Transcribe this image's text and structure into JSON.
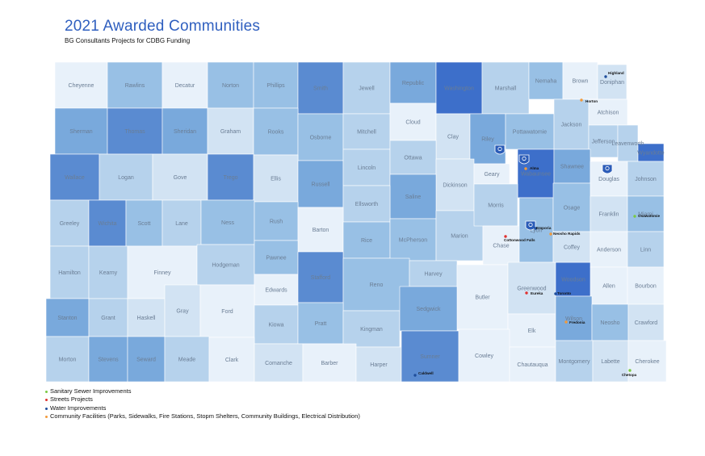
{
  "header": {
    "title": "2021 Awarded Communities",
    "subtitle": "BG Consultants Projects for CDBG Funding"
  },
  "colors": {
    "shade": [
      "#e8f1fa",
      "#d2e3f3",
      "#b6d2ec",
      "#98c0e5",
      "#79a9dc",
      "#5a8bd1",
      "#3d6fca"
    ],
    "sewer": "#7ac943",
    "streets": "#e0312f",
    "water": "#1f4e9c",
    "facilities": "#f29a3a",
    "outline": "#ffffff",
    "county_text": "#6a7d94"
  },
  "counties": [
    {
      "name": "Cheyenne",
      "shade": 0
    },
    {
      "name": "Rawlins",
      "shade": 3
    },
    {
      "name": "Decatur",
      "shade": 0
    },
    {
      "name": "Norton",
      "shade": 3
    },
    {
      "name": "Phillips",
      "shade": 3
    },
    {
      "name": "Smith",
      "shade": 5
    },
    {
      "name": "Jewell",
      "shade": 2
    },
    {
      "name": "Republic",
      "shade": 4
    },
    {
      "name": "Washington",
      "shade": 6
    },
    {
      "name": "Marshall",
      "shade": 2
    },
    {
      "name": "Nemaha",
      "shade": 3
    },
    {
      "name": "Brown",
      "shade": 0
    },
    {
      "name": "Doniphan",
      "shade": 1
    },
    {
      "name": "Sherman",
      "shade": 4
    },
    {
      "name": "Thomas",
      "shade": 5
    },
    {
      "name": "Sheridan",
      "shade": 4
    },
    {
      "name": "Graham",
      "shade": 1
    },
    {
      "name": "Rooks",
      "shade": 3
    },
    {
      "name": "Osborne",
      "shade": 3
    },
    {
      "name": "Mitchell",
      "shade": 2
    },
    {
      "name": "Cloud",
      "shade": 0
    },
    {
      "name": "Clay",
      "shade": 1
    },
    {
      "name": "Riley",
      "shade": 4
    },
    {
      "name": "Pottawatomie",
      "shade": 3
    },
    {
      "name": "Jackson",
      "shade": 2
    },
    {
      "name": "Atchison",
      "shade": 0
    },
    {
      "name": "Jefferson",
      "shade": 2
    },
    {
      "name": "Leavenworth",
      "shade": 2
    },
    {
      "name": "Wyandotte",
      "shade": 6
    },
    {
      "name": "Wallace",
      "shade": 5
    },
    {
      "name": "Logan",
      "shade": 2
    },
    {
      "name": "Gove",
      "shade": 1
    },
    {
      "name": "Trego",
      "shade": 5
    },
    {
      "name": "Ellis",
      "shade": 1
    },
    {
      "name": "Russell",
      "shade": 4
    },
    {
      "name": "Lincoln",
      "shade": 2
    },
    {
      "name": "Ottawa",
      "shade": 2
    },
    {
      "name": "Dickinson",
      "shade": 1
    },
    {
      "name": "Geary",
      "shade": 0
    },
    {
      "name": "Wabaunsee",
      "shade": 6
    },
    {
      "name": "Shawnee",
      "shade": 4
    },
    {
      "name": "Douglas",
      "shade": 0
    },
    {
      "name": "Johnson",
      "shade": 2
    },
    {
      "name": "Saline",
      "shade": 4
    },
    {
      "name": "Ellsworth",
      "shade": 2
    },
    {
      "name": "Greeley",
      "shade": 2
    },
    {
      "name": "Wichita",
      "shade": 5
    },
    {
      "name": "Scott",
      "shade": 3
    },
    {
      "name": "Lane",
      "shade": 2
    },
    {
      "name": "Ness",
      "shade": 3
    },
    {
      "name": "Rush",
      "shade": 3
    },
    {
      "name": "Barton",
      "shade": 0
    },
    {
      "name": "Rice",
      "shade": 3
    },
    {
      "name": "McPherson",
      "shade": 3
    },
    {
      "name": "Marion",
      "shade": 2
    },
    {
      "name": "Morris",
      "shade": 2
    },
    {
      "name": "Chase",
      "shade": 0
    },
    {
      "name": "Lyon",
      "shade": 3
    },
    {
      "name": "Osage",
      "shade": 3
    },
    {
      "name": "Franklin",
      "shade": 1
    },
    {
      "name": "Miami",
      "shade": 3
    },
    {
      "name": "Hamilton",
      "shade": 2
    },
    {
      "name": "Kearny",
      "shade": 2
    },
    {
      "name": "Finney",
      "shade": 0
    },
    {
      "name": "Hodgeman",
      "shade": 2
    },
    {
      "name": "Pawnee",
      "shade": 3
    },
    {
      "name": "Edwards",
      "shade": 0
    },
    {
      "name": "Stafford",
      "shade": 5
    },
    {
      "name": "Reno",
      "shade": 3
    },
    {
      "name": "Harvey",
      "shade": 2
    },
    {
      "name": "Butler",
      "shade": 0
    },
    {
      "name": "Greenwood",
      "shade": 1
    },
    {
      "name": "Woodson",
      "shade": 6
    },
    {
      "name": "Coffey",
      "shade": 1
    },
    {
      "name": "Anderson",
      "shade": 0
    },
    {
      "name": "Linn",
      "shade": 2
    },
    {
      "name": "Allen",
      "shade": 0
    },
    {
      "name": "Bourbon",
      "shade": 0
    },
    {
      "name": "Stanton",
      "shade": 4
    },
    {
      "name": "Grant",
      "shade": 2
    },
    {
      "name": "Haskell",
      "shade": 1
    },
    {
      "name": "Gray",
      "shade": 1
    },
    {
      "name": "Ford",
      "shade": 0
    },
    {
      "name": "Kiowa",
      "shade": 2
    },
    {
      "name": "Pratt",
      "shade": 3
    },
    {
      "name": "Kingman",
      "shade": 2
    },
    {
      "name": "Sedgwick",
      "shade": 4
    },
    {
      "name": "Elk",
      "shade": 0
    },
    {
      "name": "Wilson",
      "shade": 4
    },
    {
      "name": "Neosho",
      "shade": 3
    },
    {
      "name": "Crawford",
      "shade": 1
    },
    {
      "name": "Morton",
      "shade": 2
    },
    {
      "name": "Stevens",
      "shade": 4
    },
    {
      "name": "Seward",
      "shade": 4
    },
    {
      "name": "Meade",
      "shade": 2
    },
    {
      "name": "Clark",
      "shade": 0
    },
    {
      "name": "Comanche",
      "shade": 1
    },
    {
      "name": "Barber",
      "shade": 0
    },
    {
      "name": "Harper",
      "shade": 1
    },
    {
      "name": "Sumner",
      "shade": 5
    },
    {
      "name": "Cowley",
      "shade": 0
    },
    {
      "name": "Chautauqua",
      "shade": 0
    },
    {
      "name": "Montgomery",
      "shade": 2
    },
    {
      "name": "Labette",
      "shade": 1
    },
    {
      "name": "Cherokee",
      "shade": 0
    }
  ],
  "cities": [
    {
      "name": "Highland",
      "type": "water"
    },
    {
      "name": "Horton",
      "type": "facilities"
    },
    {
      "name": "Alma",
      "type": "facilities"
    },
    {
      "name": "Emporia",
      "type": "water"
    },
    {
      "name": "Neosho Rapids",
      "type": "facilities"
    },
    {
      "name": "Cottonwood Falls",
      "type": "streets"
    },
    {
      "name": "Osawatomie",
      "type": "sewer"
    },
    {
      "name": "Eureka",
      "type": "streets"
    },
    {
      "name": "Toronto",
      "type": "water"
    },
    {
      "name": "Fredonia",
      "type": "facilities"
    },
    {
      "name": "Caldwell",
      "type": "water"
    },
    {
      "name": "Chetopa",
      "type": "sewer"
    }
  ],
  "markers": [
    {
      "icon": "community-shield-icon",
      "near": "Riley"
    },
    {
      "icon": "community-shield-icon",
      "near": "Wabaunsee"
    },
    {
      "icon": "community-shield-icon",
      "near": "Douglas"
    },
    {
      "icon": "community-shield-icon",
      "near": "Emporia"
    }
  ],
  "legend": [
    {
      "label": "Sanitary Sewer Improvements",
      "type": "sewer"
    },
    {
      "label": "Streets Projects",
      "type": "streets"
    },
    {
      "label": "Water Improvements",
      "type": "water"
    },
    {
      "label": "Community Facilities (Parks, Sidewalks, Fire Stations, Stopm Shelters, Community Buildings, Electrical Distribution)",
      "type": "facilities"
    }
  ]
}
